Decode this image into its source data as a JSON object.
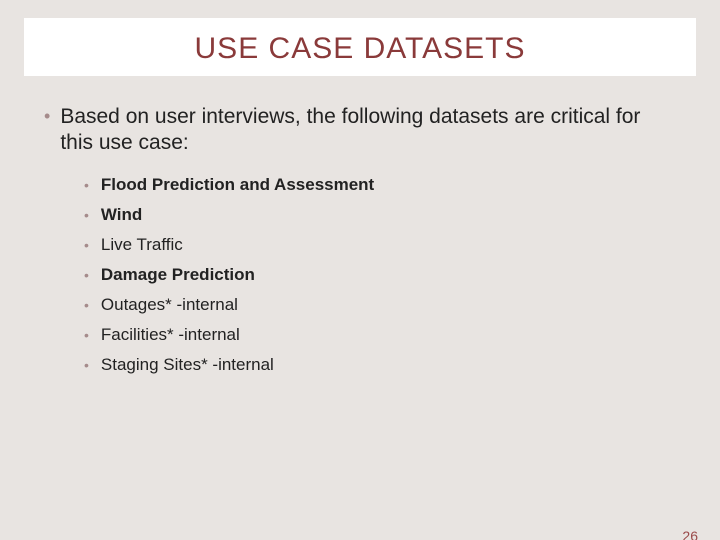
{
  "colors": {
    "background": "#e8e4e1",
    "title_box_bg": "#ffffff",
    "title_text": "#8a3a3a",
    "bullet_dot": "#a58b8b",
    "body_text": "#222222",
    "page_number": "#9a4a4a"
  },
  "typography": {
    "title_fontsize": 30,
    "body_fontsize": 21,
    "sub_fontsize": 17,
    "page_number_fontsize": 14,
    "font_family": "Arial"
  },
  "title": "USE CASE DATASETS",
  "main_point": "Based on user interviews, the following datasets are critical for this use case:",
  "sub_items": [
    {
      "text": "Flood Prediction and Assessment",
      "bold": true
    },
    {
      "text": "Wind",
      "bold": true
    },
    {
      "text": "Live Traffic",
      "bold": false
    },
    {
      "text": "Damage Prediction",
      "bold": true
    },
    {
      "text": "Outages* -internal",
      "bold": false
    },
    {
      "text": "Facilities* -internal",
      "bold": false
    },
    {
      "text": "Staging Sites* -internal",
      "bold": false
    }
  ],
  "page_number": "26"
}
